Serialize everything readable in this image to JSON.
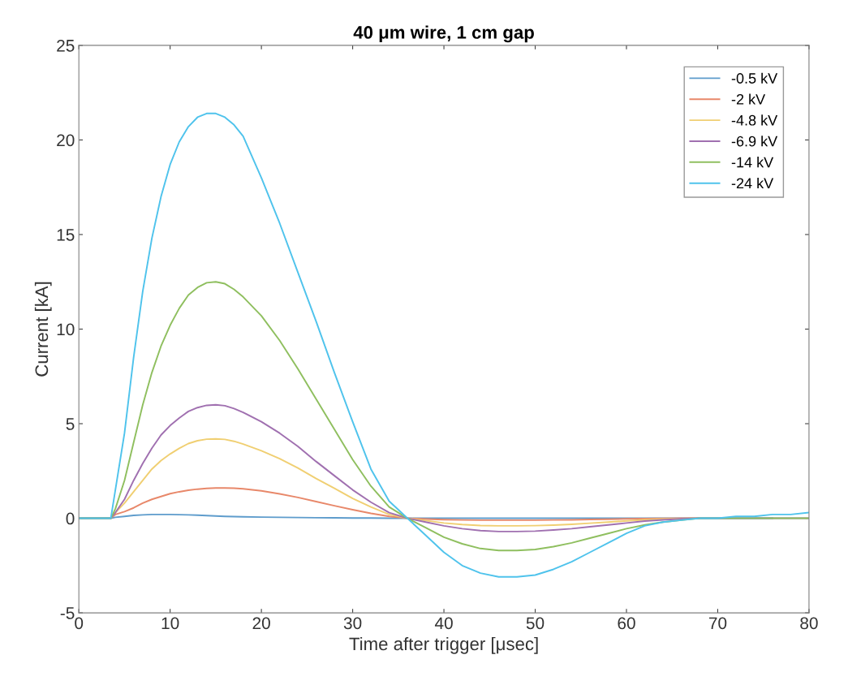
{
  "chart_data": {
    "type": "line",
    "title": "40 μm wire, 1 cm gap",
    "xlabel": "Time after trigger [μsec]",
    "ylabel": "Current [kA]",
    "x": [
      0,
      3.5,
      4,
      5,
      6,
      7,
      8,
      9,
      10,
      11,
      12,
      13,
      14,
      15,
      16,
      17,
      18,
      20,
      22,
      24,
      26,
      28,
      30,
      32,
      34,
      36,
      38,
      40,
      42,
      44,
      46,
      48,
      50,
      52,
      54,
      56,
      58,
      60,
      62,
      64,
      66,
      68,
      70,
      72,
      74,
      76,
      78,
      80
    ],
    "series": [
      {
        "name": "-0.5 kV",
        "color": "#5e9ccc",
        "values": [
          0,
          0,
          0.05,
          0.1,
          0.15,
          0.18,
          0.2,
          0.2,
          0.2,
          0.19,
          0.18,
          0.16,
          0.14,
          0.12,
          0.1,
          0.09,
          0.08,
          0.06,
          0.05,
          0.04,
          0.03,
          0.02,
          0.01,
          0.01,
          0,
          0,
          0,
          0,
          0,
          0,
          0,
          0,
          0,
          0,
          0,
          0,
          0,
          0,
          0,
          0,
          0,
          0,
          0,
          0,
          0,
          0,
          null,
          null
        ]
      },
      {
        "name": "-2 kV",
        "color": "#e8886a",
        "values": [
          0,
          0,
          0.2,
          0.35,
          0.55,
          0.8,
          1.0,
          1.15,
          1.3,
          1.4,
          1.48,
          1.54,
          1.58,
          1.6,
          1.6,
          1.59,
          1.56,
          1.45,
          1.29,
          1.1,
          0.88,
          0.66,
          0.45,
          0.26,
          0.1,
          0,
          -0.04,
          -0.07,
          -0.09,
          -0.1,
          -0.1,
          -0.1,
          -0.1,
          -0.09,
          -0.08,
          -0.06,
          -0.05,
          -0.03,
          -0.02,
          -0.01,
          0,
          0,
          null,
          null,
          null,
          null,
          null,
          null
        ]
      },
      {
        "name": "-4.8 kV",
        "color": "#f0cf72",
        "values": [
          0,
          0,
          0.3,
          0.8,
          1.4,
          2.0,
          2.6,
          3.05,
          3.4,
          3.7,
          3.95,
          4.1,
          4.18,
          4.2,
          4.17,
          4.07,
          3.92,
          3.57,
          3.15,
          2.66,
          2.1,
          1.58,
          1.05,
          0.6,
          0.2,
          0,
          -0.12,
          -0.25,
          -0.33,
          -0.38,
          -0.4,
          -0.4,
          -0.39,
          -0.36,
          -0.32,
          -0.26,
          -0.2,
          -0.14,
          -0.08,
          -0.04,
          -0.02,
          0,
          null,
          null,
          null,
          null,
          null,
          null
        ]
      },
      {
        "name": "-6.9 kV",
        "color": "#a070b0",
        "values": [
          0,
          0,
          0.3,
          1.0,
          2.0,
          2.9,
          3.7,
          4.4,
          4.9,
          5.3,
          5.65,
          5.85,
          5.97,
          6.0,
          5.95,
          5.8,
          5.6,
          5.1,
          4.5,
          3.8,
          3.0,
          2.25,
          1.5,
          0.85,
          0.3,
          0,
          -0.2,
          -0.4,
          -0.55,
          -0.65,
          -0.7,
          -0.7,
          -0.68,
          -0.62,
          -0.55,
          -0.45,
          -0.35,
          -0.25,
          -0.15,
          -0.08,
          -0.03,
          0,
          0,
          0,
          0,
          0,
          0,
          0
        ]
      },
      {
        "name": "-14 kV",
        "color": "#8fbf5f",
        "values": [
          0,
          0,
          0.5,
          2.0,
          4.0,
          6.0,
          7.7,
          9.1,
          10.2,
          11.1,
          11.8,
          12.2,
          12.45,
          12.5,
          12.4,
          12.1,
          11.7,
          10.7,
          9.4,
          7.9,
          6.3,
          4.7,
          3.1,
          1.7,
          0.6,
          0,
          -0.5,
          -1.0,
          -1.35,
          -1.6,
          -1.7,
          -1.7,
          -1.65,
          -1.5,
          -1.3,
          -1.05,
          -0.8,
          -0.55,
          -0.35,
          -0.2,
          -0.1,
          0,
          0,
          0,
          0,
          0,
          0,
          0
        ]
      },
      {
        "name": "-24 kV",
        "color": "#4fc3ec",
        "values": [
          0,
          0,
          1.5,
          4.5,
          8.5,
          12,
          14.8,
          17,
          18.7,
          19.9,
          20.7,
          21.2,
          21.4,
          21.4,
          21.2,
          20.8,
          20.2,
          18.0,
          15.6,
          13.0,
          10.4,
          7.7,
          5.1,
          2.6,
          0.9,
          0,
          -0.9,
          -1.8,
          -2.5,
          -2.9,
          -3.1,
          -3.1,
          -3.0,
          -2.7,
          -2.3,
          -1.8,
          -1.3,
          -0.8,
          -0.4,
          -0.2,
          -0.1,
          0,
          0,
          0.1,
          0.1,
          0.2,
          0.2,
          0.3
        ]
      }
    ],
    "xlim": [
      0,
      80
    ],
    "xticks": [
      0,
      10,
      20,
      30,
      40,
      50,
      60,
      70,
      80
    ],
    "ylim": [
      -5,
      25
    ],
    "yticks": [
      {
        "value": -5,
        "label": "-5"
      },
      0,
      5,
      10,
      15,
      20,
      25
    ],
    "legend": "top right",
    "grid": false
  }
}
